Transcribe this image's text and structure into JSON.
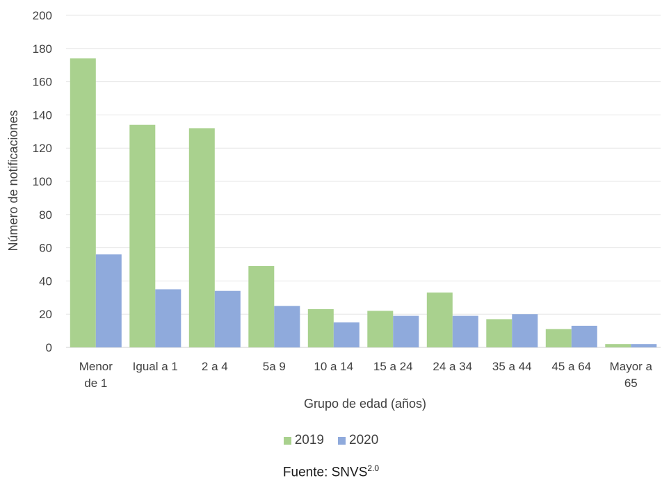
{
  "chart_data": {
    "type": "bar",
    "title": "",
    "xlabel": "Grupo de edad (años)",
    "ylabel": "Número de notificaciones",
    "ylim": [
      0,
      200
    ],
    "yticks": [
      "0",
      "20",
      "40",
      "60",
      "80",
      "100",
      "120",
      "140",
      "160",
      "180",
      "200"
    ],
    "grid": true,
    "legend_position": "bottom",
    "categories": [
      [
        "Menor",
        "de 1"
      ],
      [
        "Igual a 1"
      ],
      [
        "2 a 4"
      ],
      [
        "5a 9"
      ],
      [
        "10 a 14"
      ],
      [
        "15 a 24"
      ],
      [
        "24 a 34"
      ],
      [
        "35 a 44"
      ],
      [
        "45 a 64"
      ],
      [
        "Mayor a",
        "65"
      ]
    ],
    "series": [
      {
        "name": "2019",
        "color": "#a9d18e",
        "values": [
          174,
          134,
          132,
          49,
          23,
          22,
          33,
          17,
          11,
          2
        ]
      },
      {
        "name": "2020",
        "color": "#8faadc",
        "values": [
          56,
          35,
          34,
          25,
          15,
          19,
          19,
          20,
          13,
          2
        ]
      }
    ]
  },
  "footer": {
    "source_label": "Fuente: SNVS",
    "source_superscript": "2.0"
  }
}
